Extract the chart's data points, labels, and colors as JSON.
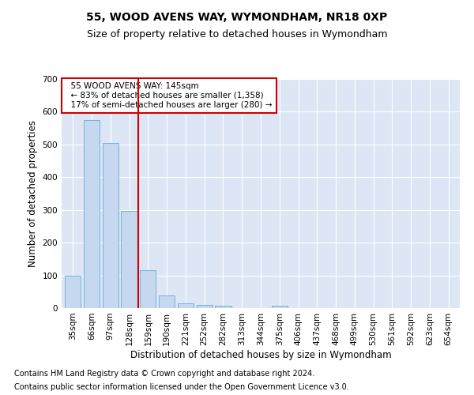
{
  "title": "55, WOOD AVENS WAY, WYMONDHAM, NR18 0XP",
  "subtitle": "Size of property relative to detached houses in Wymondham",
  "xlabel": "Distribution of detached houses by size in Wymondham",
  "ylabel": "Number of detached properties",
  "footnote1": "Contains HM Land Registry data © Crown copyright and database right 2024.",
  "footnote2": "Contains public sector information licensed under the Open Government Licence v3.0.",
  "categories": [
    "35sqm",
    "66sqm",
    "97sqm",
    "128sqm",
    "159sqm",
    "190sqm",
    "221sqm",
    "252sqm",
    "282sqm",
    "313sqm",
    "344sqm",
    "375sqm",
    "406sqm",
    "437sqm",
    "468sqm",
    "499sqm",
    "530sqm",
    "561sqm",
    "592sqm",
    "623sqm",
    "654sqm"
  ],
  "values": [
    100,
    575,
    505,
    298,
    115,
    38,
    15,
    10,
    7,
    0,
    0,
    7,
    0,
    0,
    0,
    0,
    0,
    0,
    0,
    0,
    0
  ],
  "bar_color": "#c5d8f0",
  "bar_edge_color": "#6aaad4",
  "vline_x": 3.5,
  "vline_color": "#cc0000",
  "annotation_line1": "  55 WOOD AVENS WAY: 145sqm",
  "annotation_line2": "  ← 83% of detached houses are smaller (1,358)",
  "annotation_line3": "  17% of semi-detached houses are larger (280) →",
  "annotation_box_color": "#ffffff",
  "annotation_box_edge": "#cc0000",
  "ylim": [
    0,
    700
  ],
  "yticks": [
    0,
    100,
    200,
    300,
    400,
    500,
    600,
    700
  ],
  "fig_bg_color": "#ffffff",
  "plot_bg_color": "#dce6f5",
  "grid_color": "#ffffff",
  "title_fontsize": 10,
  "subtitle_fontsize": 9,
  "axis_label_fontsize": 8.5,
  "tick_fontsize": 7.5,
  "annotation_fontsize": 7.5,
  "footnote_fontsize": 7
}
